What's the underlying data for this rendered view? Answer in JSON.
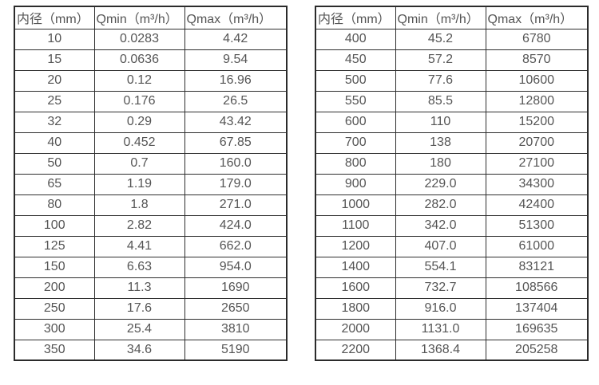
{
  "page": {
    "background_color": "#ffffff",
    "text_color": "#555555",
    "border_color": "#2e2e2e"
  },
  "tables": [
    {
      "id": "left",
      "headers": [
        "内径（mm）",
        "Qmin（m³/h）",
        "Qmax（m³/h）"
      ],
      "rows": [
        [
          "10",
          "0.0283",
          "4.42"
        ],
        [
          "15",
          "0.0636",
          "9.54"
        ],
        [
          "20",
          "0.12",
          "16.96"
        ],
        [
          "25",
          "0.176",
          "26.5"
        ],
        [
          "32",
          "0.29",
          "43.42"
        ],
        [
          "40",
          "0.452",
          "67.85"
        ],
        [
          "50",
          "0.7",
          "160.0"
        ],
        [
          "65",
          "1.19",
          "179.0"
        ],
        [
          "80",
          "1.8",
          "271.0"
        ],
        [
          "100",
          "2.82",
          "424.0"
        ],
        [
          "125",
          "4.41",
          "662.0"
        ],
        [
          "150",
          "6.63",
          "954.0"
        ],
        [
          "200",
          "11.3",
          "1690"
        ],
        [
          "250",
          "17.6",
          "2650"
        ],
        [
          "300",
          "25.4",
          "3810"
        ],
        [
          "350",
          "34.6",
          "5190"
        ]
      ]
    },
    {
      "id": "right",
      "headers": [
        "内径（mm）",
        "Qmin（m³/h）",
        "Qmax（m³/h）"
      ],
      "rows": [
        [
          "400",
          "45.2",
          "6780"
        ],
        [
          "450",
          "57.2",
          "8570"
        ],
        [
          "500",
          "77.6",
          "10600"
        ],
        [
          "550",
          "85.5",
          "12800"
        ],
        [
          "600",
          "110",
          "15200"
        ],
        [
          "700",
          "138",
          "20700"
        ],
        [
          "800",
          "180",
          "27100"
        ],
        [
          "900",
          "229.0",
          "34300"
        ],
        [
          "1000",
          "282.0",
          "42400"
        ],
        [
          "1100",
          "342.0",
          "51300"
        ],
        [
          "1200",
          "407.0",
          "61000"
        ],
        [
          "1400",
          "554.1",
          "83121"
        ],
        [
          "1600",
          "732.7",
          "108566"
        ],
        [
          "1800",
          "916.0",
          "137404"
        ],
        [
          "2000",
          "1131.0",
          "169635"
        ],
        [
          "2200",
          "1368.4",
          "205258"
        ]
      ]
    }
  ]
}
